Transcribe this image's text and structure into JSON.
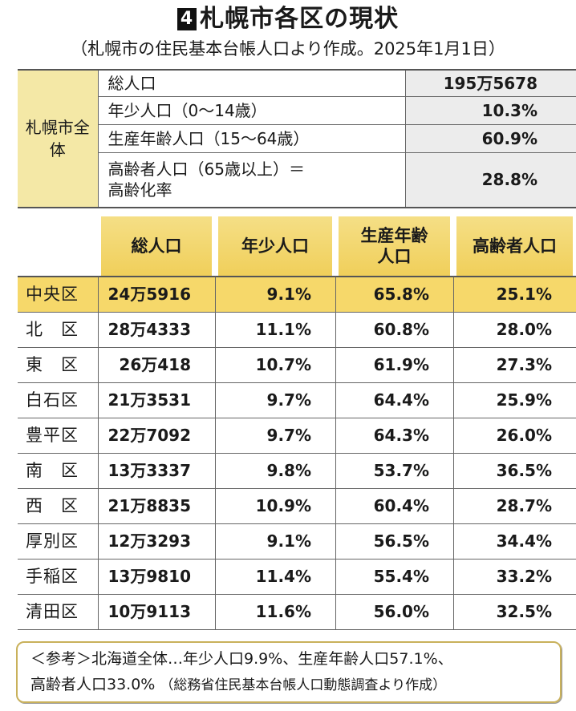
{
  "title": {
    "number": "4",
    "text": "札幌市各区の現状"
  },
  "subtitle": "（札幌市の住民基本台帳人口より作成。2025年1月1日）",
  "summary": {
    "group_label": "札幌市全体",
    "rows": [
      {
        "label": "総人口",
        "value": "195万5678"
      },
      {
        "label": "年少人口（0〜14歳）",
        "value": "10.3%"
      },
      {
        "label": "生産年齢人口（15〜64歳）",
        "value": "60.9%"
      },
      {
        "label": "高齢者人口（65歳以上）＝高齢化率",
        "value": "28.8%"
      }
    ]
  },
  "table": {
    "headers": [
      "総人口",
      "年少人口",
      "生産年齢人口",
      "高齢者人口"
    ],
    "highlight_color": "#f6d86a",
    "rows": [
      {
        "district": "中央区",
        "total": "24万5916",
        "youth": "9.1%",
        "working": "65.8%",
        "elderly": "25.1%"
      },
      {
        "district": "北　区",
        "total": "28万4333",
        "youth": "11.1%",
        "working": "60.8%",
        "elderly": "28.0%"
      },
      {
        "district": "東　区",
        "total": "26万418",
        "youth": "10.7%",
        "working": "61.9%",
        "elderly": "27.3%"
      },
      {
        "district": "白石区",
        "total": "21万3531",
        "youth": "9.7%",
        "working": "64.4%",
        "elderly": "25.9%"
      },
      {
        "district": "豊平区",
        "total": "22万7092",
        "youth": "9.7%",
        "working": "64.3%",
        "elderly": "26.0%"
      },
      {
        "district": "南　区",
        "total": "13万3337",
        "youth": "9.8%",
        "working": "53.7%",
        "elderly": "36.5%"
      },
      {
        "district": "西　区",
        "total": "21万8835",
        "youth": "10.9%",
        "working": "60.4%",
        "elderly": "28.7%"
      },
      {
        "district": "厚別区",
        "total": "12万3293",
        "youth": "9.1%",
        "working": "56.5%",
        "elderly": "34.4%"
      },
      {
        "district": "手稲区",
        "total": "13万9810",
        "youth": "11.4%",
        "working": "55.4%",
        "elderly": "33.2%"
      },
      {
        "district": "清田区",
        "total": "10万9113",
        "youth": "11.6%",
        "working": "56.0%",
        "elderly": "32.5%"
      }
    ]
  },
  "note": {
    "line1": "＜参考＞北海道全体…年少人口9.9%、生産年齢人口57.1%、",
    "line2": "高齢者人口33.0%",
    "source": "（総務省住民基本台帳人口動態調査より作成）"
  }
}
